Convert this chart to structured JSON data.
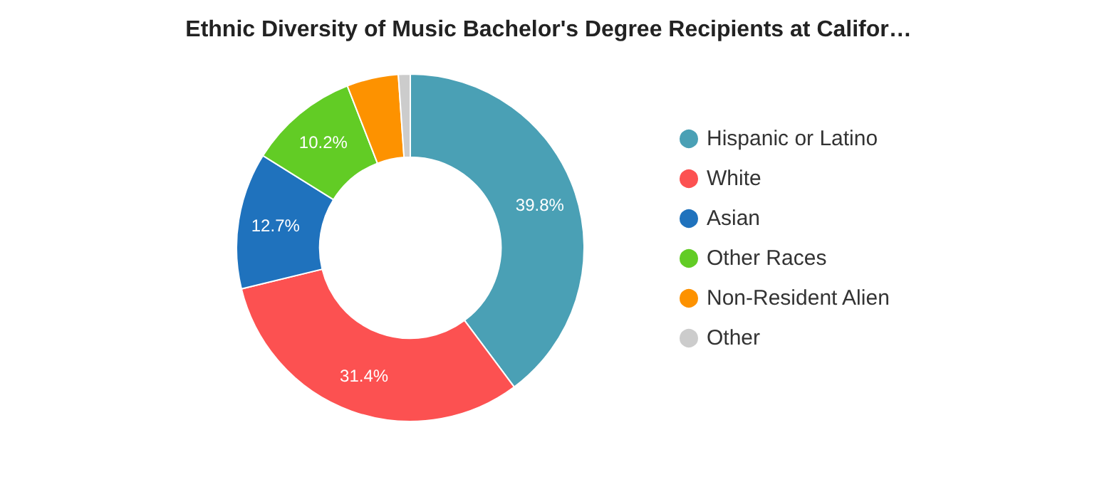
{
  "chart_data": {
    "type": "donut",
    "title": "Ethnic Diversity of Music Bachelor's Degree Recipients at Califor…",
    "categories": [
      "Hispanic or Latino",
      "White",
      "Asian",
      "Other Races",
      "Non-Resident Alien",
      "Other"
    ],
    "values": [
      39.8,
      31.4,
      12.7,
      10.2,
      4.8,
      1.1
    ],
    "value_labels": [
      "39.8%",
      "31.4%",
      "12.7%",
      "10.2%",
      null,
      null
    ],
    "colors": [
      "#4aa0b5",
      "#fc5151",
      "#1f72bd",
      "#62cc25",
      "#fd9200",
      "#cccccc"
    ],
    "legend": "right"
  }
}
